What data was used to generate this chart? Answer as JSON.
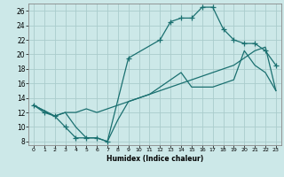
{
  "xlabel": "Humidex (Indice chaleur)",
  "bg_color": "#cce8e8",
  "grid_color": "#aacccc",
  "line_color": "#1a7070",
  "xlim": [
    -0.5,
    23.5
  ],
  "ylim": [
    7.5,
    27
  ],
  "xticks": [
    0,
    1,
    2,
    3,
    4,
    5,
    6,
    7,
    8,
    9,
    10,
    11,
    12,
    13,
    14,
    15,
    16,
    17,
    18,
    19,
    20,
    21,
    22,
    23
  ],
  "yticks": [
    8,
    10,
    12,
    14,
    16,
    18,
    20,
    22,
    24,
    26
  ],
  "line1_x": [
    0,
    1,
    2,
    3,
    4,
    5,
    6,
    7,
    9,
    12,
    13,
    14,
    15,
    16,
    17,
    18,
    19,
    20,
    21,
    22,
    23
  ],
  "line1_y": [
    13,
    12,
    11.5,
    10,
    8.5,
    8.5,
    8.5,
    8,
    19.5,
    22,
    24.5,
    25,
    25,
    26.5,
    26.5,
    23.5,
    22,
    21.5,
    21.5,
    20.5,
    18.5
  ],
  "line2_x": [
    0,
    2,
    3,
    4,
    5,
    6,
    7,
    8,
    9,
    10,
    11,
    12,
    13,
    14,
    15,
    16,
    17,
    18,
    19,
    20,
    21,
    22,
    23
  ],
  "line2_y": [
    13,
    11.5,
    12,
    12,
    12.5,
    12,
    12.5,
    13,
    13.5,
    14,
    14.5,
    15,
    15.5,
    16,
    16.5,
    17,
    17.5,
    18,
    18.5,
    19.5,
    20.5,
    21,
    15
  ],
  "line3_x": [
    0,
    2,
    3,
    4,
    5,
    6,
    7,
    8,
    9,
    10,
    11,
    12,
    13,
    14,
    15,
    16,
    17,
    18,
    19,
    20,
    21,
    22,
    23
  ],
  "line3_y": [
    13,
    11.5,
    12,
    10,
    8.5,
    8.5,
    8,
    11,
    13.5,
    14,
    14.5,
    15.5,
    16.5,
    17.5,
    15.5,
    15.5,
    15.5,
    16,
    16.5,
    20.5,
    18.5,
    17.5,
    15
  ]
}
